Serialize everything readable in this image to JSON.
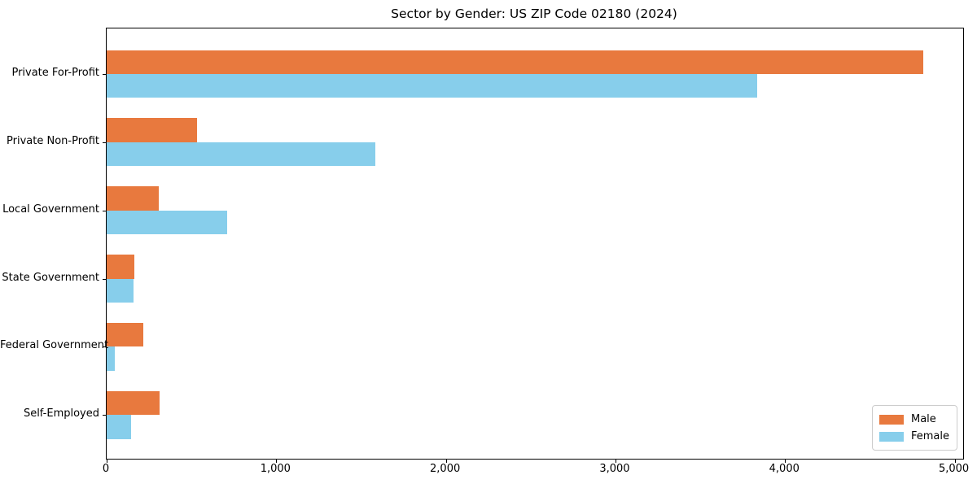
{
  "chart_data": {
    "type": "bar",
    "orientation": "horizontal",
    "title": "Sector by Gender: US ZIP Code 02180 (2024)",
    "categories": [
      "Private For-Profit",
      "Private Non-Profit",
      "Local Government",
      "State Government",
      "Federal Government",
      "Self-Employed"
    ],
    "series": [
      {
        "name": "Male",
        "color": "#e8793e",
        "values": [
          4815,
          535,
          305,
          165,
          215,
          310
        ]
      },
      {
        "name": "Female",
        "color": "#87ceeb",
        "values": [
          3835,
          1585,
          710,
          160,
          50,
          145
        ]
      }
    ],
    "xlabel": "",
    "ylabel": "",
    "xlim": [
      0,
      5050
    ],
    "x_tick_values": [
      0,
      1000,
      2000,
      3000,
      4000,
      5000
    ],
    "x_tick_labels": [
      "0",
      "1,000",
      "2,000",
      "3,000",
      "4,000",
      "5,000"
    ],
    "grid": false,
    "legend_position": "lower right",
    "plot_border_color": "#000000",
    "background_color": "#ffffff"
  }
}
